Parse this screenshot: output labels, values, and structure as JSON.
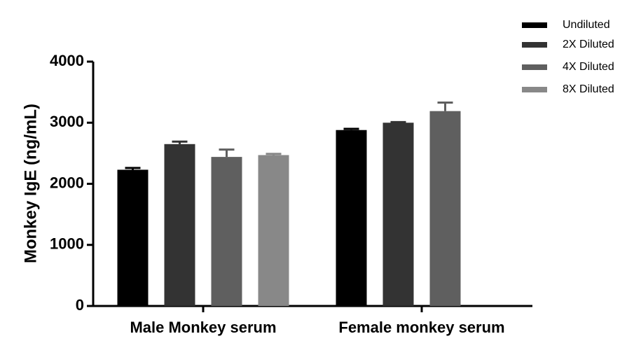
{
  "chart_data": {
    "type": "bar",
    "y_label": "Monkey IgE (ng/mL)",
    "categories": [
      "Male Monkey serum",
      "Female monkey serum"
    ],
    "series": [
      {
        "name": "Undiluted",
        "color": "#000000",
        "values": [
          2230,
          2880
        ],
        "errors": [
          30,
          20
        ]
      },
      {
        "name": "2X Diluted",
        "color": "#333333",
        "values": [
          2650,
          3000
        ],
        "errors": [
          40,
          10
        ]
      },
      {
        "name": "4X Diluted",
        "color": "#5f5f5f",
        "values": [
          2440,
          3190
        ],
        "errors": [
          120,
          140
        ]
      },
      {
        "name": "8X Diluted",
        "color": "#888888",
        "values": [
          2470,
          null
        ],
        "errors": [
          20,
          null
        ]
      }
    ],
    "ylim": [
      0,
      4000
    ],
    "yticks": [
      0,
      1000,
      2000,
      3000,
      4000
    ],
    "legend": "top-right"
  }
}
